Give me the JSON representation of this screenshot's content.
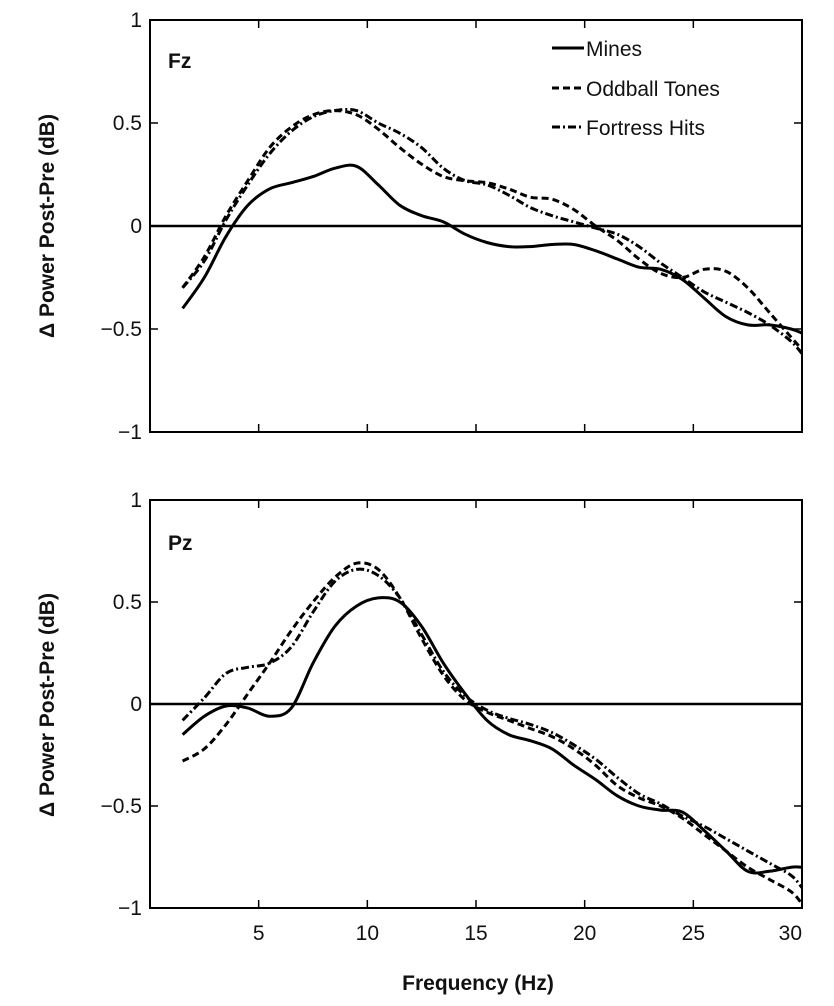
{
  "chart_data": [
    {
      "type": "line",
      "panel_label": "Fz",
      "ylabel": "Δ Power Post-Pre (dB)",
      "xlabel": "",
      "xlim": [
        0,
        30
      ],
      "ylim": [
        -1,
        1
      ],
      "xticks": [],
      "yticks": [
        -1,
        -0.5,
        0,
        0.5,
        1
      ],
      "ytick_labels": [
        "−1",
        "−0.5",
        "0",
        "0.5",
        "1"
      ],
      "zero_line": true,
      "grid": false,
      "legend": {
        "position": "top-right",
        "entries": [
          "Mines",
          "Oddball Tones",
          "Fortress Hits"
        ]
      },
      "series": [
        {
          "name": "Mines",
          "style": "solid",
          "x": [
            1.5,
            2.5,
            3.5,
            4.5,
            5.5,
            6.5,
            7.5,
            8.5,
            9.5,
            10.5,
            11.5,
            12.5,
            13.5,
            14.5,
            15.5,
            16.5,
            17.5,
            18.5,
            19.5,
            20.5,
            21.5,
            22.5,
            23.5,
            24.5,
            25.5,
            26.5,
            27.5,
            28.5,
            29.5,
            30
          ],
          "y": [
            -0.4,
            -0.25,
            -0.05,
            0.1,
            0.18,
            0.21,
            0.24,
            0.28,
            0.29,
            0.2,
            0.1,
            0.05,
            0.02,
            -0.04,
            -0.08,
            -0.1,
            -0.1,
            -0.09,
            -0.09,
            -0.12,
            -0.16,
            -0.2,
            -0.21,
            -0.26,
            -0.35,
            -0.44,
            -0.48,
            -0.48,
            -0.5,
            -0.52
          ]
        },
        {
          "name": "Oddball Tones",
          "style": "dashed",
          "x": [
            1.5,
            2.5,
            3.5,
            4.5,
            5.5,
            6.5,
            7.5,
            8.5,
            9.5,
            10.5,
            11.5,
            12.5,
            13.5,
            14.5,
            15.5,
            16.5,
            17.5,
            18.5,
            19.5,
            20.5,
            21.5,
            22.5,
            23.5,
            24.5,
            25.5,
            26.5,
            27.5,
            28.5,
            29.5,
            30
          ],
          "y": [
            -0.3,
            -0.15,
            0.05,
            0.22,
            0.38,
            0.48,
            0.54,
            0.56,
            0.54,
            0.47,
            0.38,
            0.3,
            0.24,
            0.22,
            0.21,
            0.18,
            0.14,
            0.13,
            0.08,
            0.0,
            -0.07,
            -0.16,
            -0.23,
            -0.25,
            -0.21,
            -0.22,
            -0.3,
            -0.42,
            -0.54,
            -0.6
          ]
        },
        {
          "name": "Fortress Hits",
          "style": "dash-dot",
          "x": [
            1.5,
            2.5,
            3.5,
            4.5,
            5.5,
            6.5,
            7.5,
            8.5,
            9.5,
            10.5,
            11.5,
            12.5,
            13.5,
            14.5,
            15.5,
            16.5,
            17.5,
            18.5,
            19.5,
            20.5,
            21.5,
            22.5,
            23.5,
            24.5,
            25.5,
            26.5,
            27.5,
            28.5,
            29.5,
            30
          ],
          "y": [
            -0.3,
            -0.17,
            0.03,
            0.2,
            0.35,
            0.46,
            0.53,
            0.56,
            0.56,
            0.5,
            0.45,
            0.38,
            0.28,
            0.22,
            0.2,
            0.15,
            0.09,
            0.05,
            0.02,
            -0.01,
            -0.04,
            -0.1,
            -0.18,
            -0.25,
            -0.32,
            -0.37,
            -0.42,
            -0.48,
            -0.56,
            -0.62
          ]
        }
      ]
    },
    {
      "type": "line",
      "panel_label": "Pz",
      "ylabel": "Δ Power Post-Pre (dB)",
      "xlabel": "Frequency (Hz)",
      "xlim": [
        0,
        30
      ],
      "ylim": [
        -1,
        1
      ],
      "xticks": [
        5,
        10,
        15,
        20,
        25,
        30
      ],
      "yticks": [
        -1,
        -0.5,
        0,
        0.5,
        1
      ],
      "ytick_labels": [
        "−1",
        "−0.5",
        "0",
        "0.5",
        "1"
      ],
      "zero_line": true,
      "grid": false,
      "series": [
        {
          "name": "Mines",
          "style": "solid",
          "x": [
            1.5,
            2.5,
            3.5,
            4.5,
            5.5,
            6.5,
            7.5,
            8.5,
            9.5,
            10.5,
            11.5,
            12.5,
            13.5,
            14.5,
            15.5,
            16.5,
            17.5,
            18.5,
            19.5,
            20.5,
            21.5,
            22.5,
            23.5,
            24.5,
            25.5,
            26.5,
            27.5,
            28.5,
            29.5,
            30
          ],
          "y": [
            -0.15,
            -0.06,
            -0.01,
            -0.02,
            -0.06,
            -0.02,
            0.2,
            0.38,
            0.48,
            0.52,
            0.5,
            0.38,
            0.2,
            0.05,
            -0.08,
            -0.15,
            -0.18,
            -0.22,
            -0.3,
            -0.37,
            -0.45,
            -0.5,
            -0.52,
            -0.53,
            -0.62,
            -0.72,
            -0.82,
            -0.82,
            -0.8,
            -0.8
          ]
        },
        {
          "name": "Oddball Tones",
          "style": "dashed",
          "x": [
            1.5,
            2.5,
            3.5,
            4.5,
            5.5,
            6.5,
            7.5,
            8.5,
            9.5,
            10.5,
            11.5,
            12.5,
            13.5,
            14.5,
            15.5,
            16.5,
            17.5,
            18.5,
            19.5,
            20.5,
            21.5,
            22.5,
            23.5,
            24.5,
            25.5,
            26.5,
            27.5,
            28.5,
            29.5,
            30
          ],
          "y": [
            -0.28,
            -0.22,
            -0.1,
            0.05,
            0.2,
            0.36,
            0.5,
            0.62,
            0.69,
            0.66,
            0.52,
            0.32,
            0.14,
            0.02,
            -0.04,
            -0.08,
            -0.12,
            -0.16,
            -0.22,
            -0.3,
            -0.4,
            -0.46,
            -0.5,
            -0.56,
            -0.64,
            -0.72,
            -0.8,
            -0.86,
            -0.92,
            -0.98
          ]
        },
        {
          "name": "Fortress Hits",
          "style": "dash-dot",
          "x": [
            1.5,
            2.5,
            3.5,
            4.5,
            5.5,
            6.5,
            7.5,
            8.5,
            9.5,
            10.5,
            11.5,
            12.5,
            13.5,
            14.5,
            15.5,
            16.5,
            17.5,
            18.5,
            19.5,
            20.5,
            21.5,
            22.5,
            23.5,
            24.5,
            25.5,
            26.5,
            27.5,
            28.5,
            29.5,
            30
          ],
          "y": [
            -0.08,
            0.03,
            0.15,
            0.18,
            0.2,
            0.28,
            0.45,
            0.6,
            0.66,
            0.63,
            0.52,
            0.34,
            0.16,
            0.04,
            -0.03,
            -0.07,
            -0.1,
            -0.14,
            -0.2,
            -0.27,
            -0.36,
            -0.44,
            -0.49,
            -0.55,
            -0.6,
            -0.66,
            -0.72,
            -0.78,
            -0.84,
            -0.9
          ]
        }
      ]
    }
  ]
}
